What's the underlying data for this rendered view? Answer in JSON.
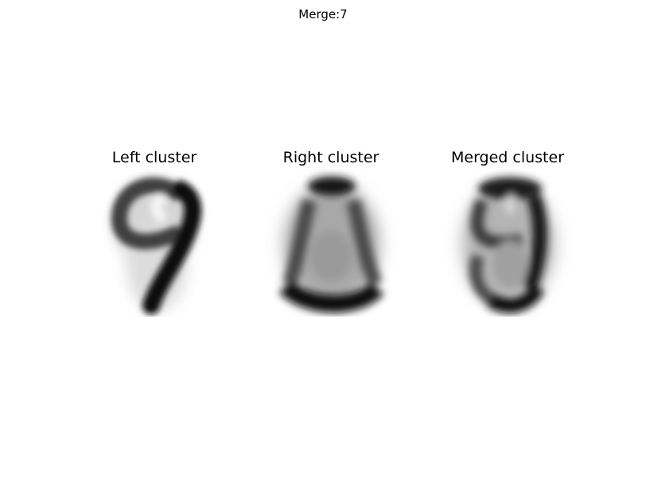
{
  "figure": {
    "suptitle": "Merge:7",
    "panels": [
      {
        "title": "Left cluster",
        "depicts": "average digit image resembling 9"
      },
      {
        "title": "Right cluster",
        "depicts": "average digit image resembling 8"
      },
      {
        "title": "Merged cluster",
        "depicts": "blended average of the 9 and 8 clusters"
      }
    ],
    "colormap": "grayscale (white = low, black = high)"
  }
}
